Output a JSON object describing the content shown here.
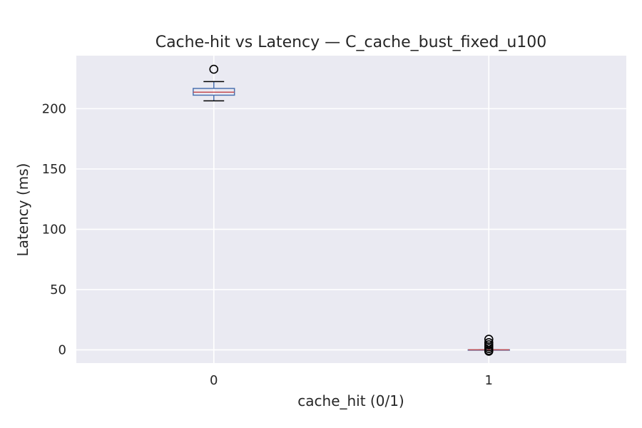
{
  "chart_data": {
    "type": "box",
    "title": "Cache-hit vs Latency — C_cache_bust_fixed_u100",
    "xlabel": "cache_hit (0/1)",
    "ylabel": "Latency (ms)",
    "categories": [
      "0",
      "1"
    ],
    "ylim": [
      -11,
      244
    ],
    "yticks": [
      0,
      50,
      100,
      150,
      200
    ],
    "grid": true,
    "boxes": [
      {
        "category": "0",
        "whisker_low": 206.5,
        "q1": 211.2,
        "median": 213.7,
        "q3": 216.8,
        "whisker_high": 222.5,
        "outliers": [
          232.7
        ]
      },
      {
        "category": "1",
        "whisker_low": 0,
        "q1": 0,
        "median": 0,
        "q3": 0,
        "whisker_high": 0,
        "outliers": [
          8.8,
          6.0,
          4.2,
          2.5,
          1.0,
          -0.5,
          -1.2
        ]
      }
    ],
    "colors": {
      "background": "#eaeaf2",
      "grid": "#ffffff",
      "box": "#4c72b0",
      "median": "#c44e52",
      "whisker": "#000000",
      "outlier": "#000000"
    }
  }
}
